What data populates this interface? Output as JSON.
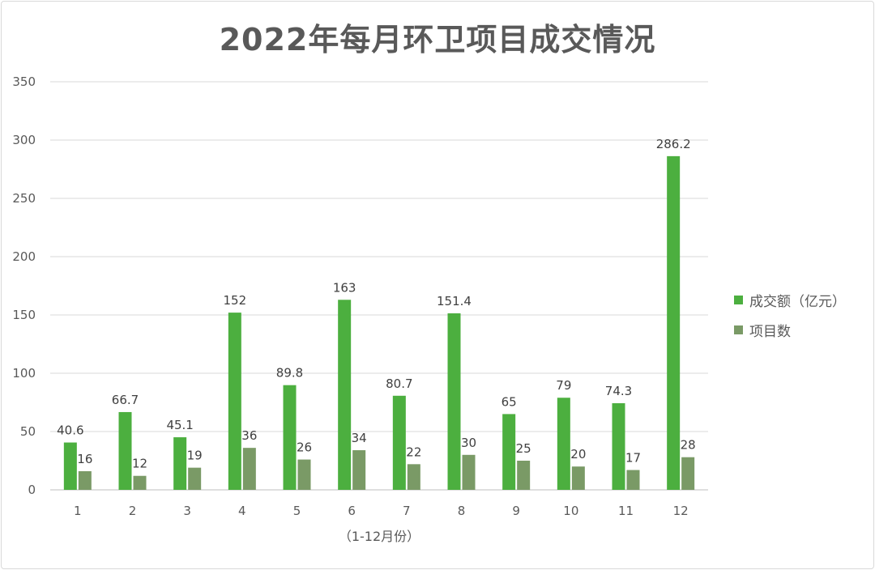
{
  "chart_data": {
    "type": "bar",
    "title": "2022年每月环卫项目成交情况",
    "xlabel": "（1-12月份）",
    "ylabel": "",
    "categories": [
      "1",
      "2",
      "3",
      "4",
      "5",
      "6",
      "7",
      "8",
      "9",
      "10",
      "11",
      "12"
    ],
    "ylim": [
      0,
      350
    ],
    "yticks": [
      0,
      50,
      100,
      150,
      200,
      250,
      300,
      350
    ],
    "grid": true,
    "legend_position": "right",
    "series": [
      {
        "name": "成交额（亿元）",
        "color": "#4caf3f",
        "values": [
          40.6,
          66.7,
          45.1,
          152,
          89.8,
          163,
          80.7,
          151.4,
          65,
          79,
          74.3,
          286.2
        ],
        "labels": [
          "40.6",
          "66.7",
          "45.1",
          "152",
          "89.8",
          "163",
          "80.7",
          "151.4",
          "65",
          "79",
          "74.3",
          "286.2"
        ]
      },
      {
        "name": "项目数",
        "color": "#7a9a66",
        "values": [
          16,
          12,
          19,
          36,
          26,
          34,
          22,
          30,
          25,
          20,
          17,
          28
        ],
        "labels": [
          "16",
          "12",
          "19",
          "36",
          "26",
          "34",
          "22",
          "30",
          "25",
          "20",
          "17",
          "28"
        ]
      }
    ]
  }
}
